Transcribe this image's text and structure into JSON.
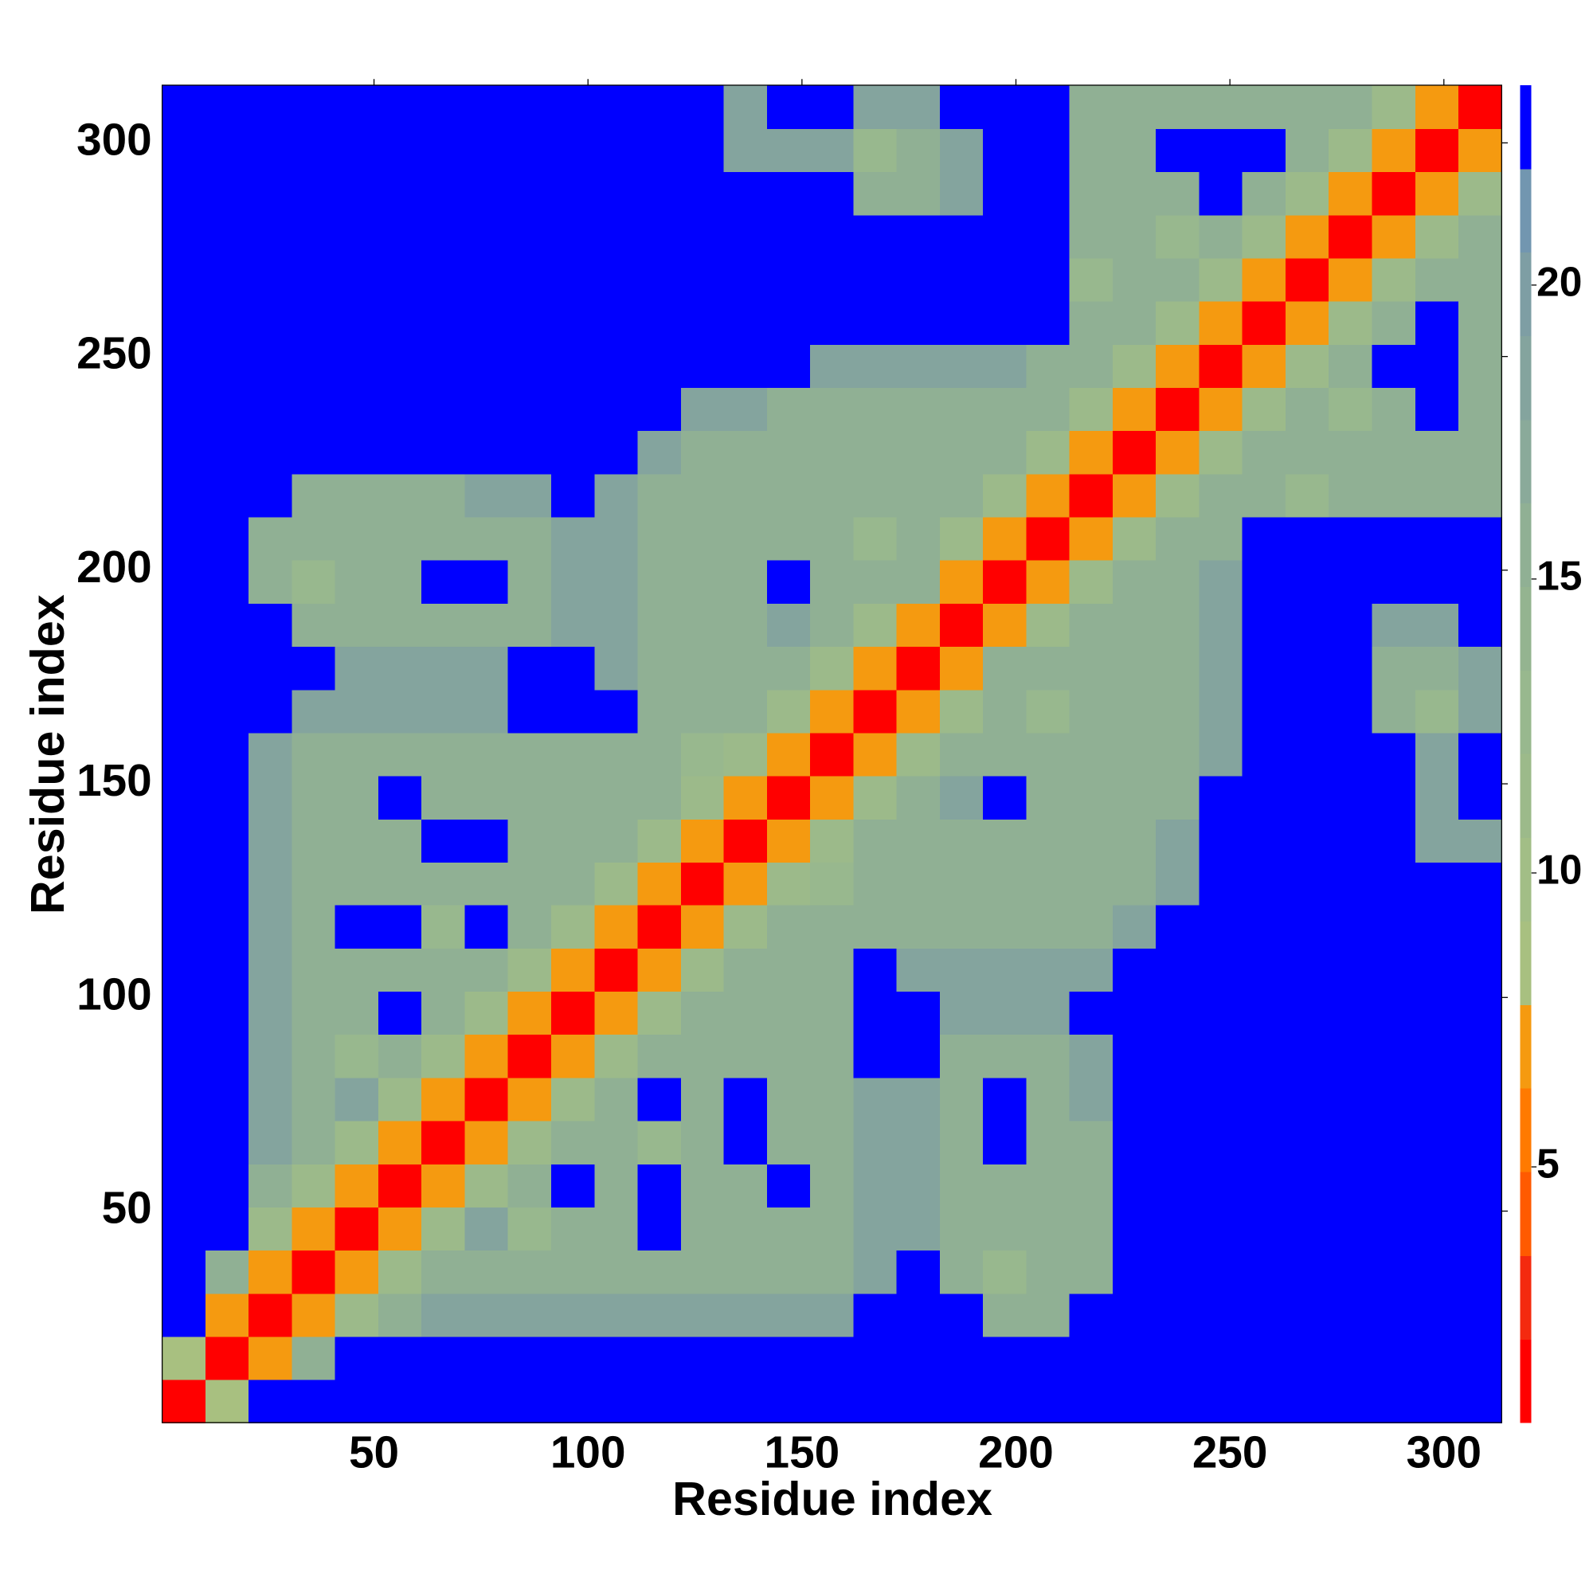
{
  "chart_data": {
    "type": "heatmap",
    "xlabel": "Residue index",
    "ylabel": "Residue index",
    "xlim": [
      0.5,
      313.5
    ],
    "ylim": [
      0.5,
      313.5
    ],
    "xticks": [
      50,
      100,
      150,
      200,
      250,
      300
    ],
    "yticks": [
      50,
      100,
      150,
      200,
      250,
      300
    ],
    "xbins": [
      0.5,
      10.6,
      20.7,
      30.8,
      40.9,
      51.0,
      61.1,
      71.2,
      81.3,
      91.4,
      101.5,
      111.6,
      121.7,
      131.7,
      141.8,
      151.9,
      162.0,
      172.1,
      182.2,
      192.3,
      202.4,
      212.5,
      222.6,
      232.7,
      242.8,
      252.9,
      263.0,
      273.1,
      283.2,
      293.3,
      303.4,
      313.5
    ],
    "ybins": [
      0.5,
      10.6,
      20.7,
      30.8,
      40.9,
      51.0,
      61.1,
      71.2,
      81.3,
      91.4,
      101.5,
      111.6,
      121.7,
      131.7,
      141.8,
      151.9,
      162.0,
      172.1,
      182.2,
      192.3,
      202.4,
      212.5,
      222.6,
      232.7,
      242.8,
      252.9,
      263.0,
      273.1,
      283.2,
      293.3,
      303.4,
      313.5
    ],
    "z": [
      [
        2,
        9,
        23,
        23,
        23,
        23,
        23,
        23,
        23,
        23,
        23,
        23,
        23,
        23,
        23,
        23,
        23,
        23,
        23,
        23,
        23,
        23,
        23,
        23,
        23,
        23,
        23,
        23,
        23,
        23,
        23
      ],
      [
        9,
        2,
        7,
        16,
        23,
        23,
        23,
        23,
        23,
        23,
        23,
        23,
        23,
        23,
        23,
        23,
        23,
        23,
        23,
        23,
        23,
        23,
        23,
        23,
        23,
        23,
        23,
        23,
        23,
        23,
        23
      ],
      [
        23,
        7,
        2,
        7,
        12,
        16,
        18,
        18,
        18,
        18,
        18,
        18,
        18,
        18,
        18,
        18,
        23,
        23,
        23,
        16,
        16,
        23,
        23,
        23,
        23,
        23,
        23,
        23,
        23,
        23,
        23
      ],
      [
        23,
        16,
        7,
        2,
        7,
        12,
        16,
        16,
        16,
        16,
        16,
        16,
        16,
        16,
        16,
        16,
        18,
        23,
        16,
        13,
        16,
        16,
        23,
        23,
        23,
        23,
        23,
        23,
        23,
        23,
        23
      ],
      [
        23,
        23,
        12,
        7,
        2,
        7,
        12,
        18,
        13,
        16,
        16,
        23,
        16,
        16,
        16,
        16,
        18,
        18,
        16,
        16,
        16,
        16,
        23,
        23,
        23,
        23,
        23,
        23,
        23,
        23,
        23
      ],
      [
        23,
        23,
        16,
        12,
        7,
        2,
        7,
        12,
        16,
        23,
        16,
        23,
        16,
        16,
        23,
        16,
        18,
        18,
        16,
        16,
        16,
        16,
        23,
        23,
        23,
        23,
        23,
        23,
        23,
        23,
        23
      ],
      [
        23,
        23,
        18,
        16,
        12,
        7,
        2,
        7,
        12,
        16,
        16,
        13,
        16,
        23,
        16,
        16,
        18,
        18,
        16,
        23,
        16,
        16,
        23,
        23,
        23,
        23,
        23,
        23,
        23,
        23,
        23
      ],
      [
        23,
        23,
        18,
        16,
        18,
        12,
        7,
        2,
        7,
        12,
        16,
        23,
        16,
        23,
        16,
        16,
        18,
        18,
        16,
        23,
        16,
        18,
        23,
        23,
        23,
        23,
        23,
        23,
        23,
        23,
        23
      ],
      [
        23,
        23,
        18,
        16,
        13,
        16,
        12,
        7,
        2,
        7,
        12,
        16,
        16,
        16,
        16,
        16,
        23,
        23,
        16,
        16,
        16,
        18,
        23,
        23,
        23,
        23,
        23,
        23,
        23,
        23,
        23
      ],
      [
        23,
        23,
        18,
        16,
        16,
        23,
        16,
        12,
        7,
        2,
        7,
        12,
        16,
        16,
        16,
        16,
        23,
        23,
        18,
        18,
        18,
        23,
        23,
        23,
        23,
        23,
        23,
        23,
        23,
        23,
        23
      ],
      [
        23,
        23,
        18,
        16,
        16,
        16,
        16,
        16,
        12,
        7,
        2,
        7,
        12,
        16,
        16,
        16,
        23,
        18,
        18,
        18,
        18,
        18,
        23,
        23,
        23,
        23,
        23,
        23,
        23,
        23,
        23
      ],
      [
        23,
        23,
        18,
        16,
        23,
        23,
        13,
        23,
        16,
        12,
        7,
        2,
        7,
        12,
        16,
        16,
        16,
        16,
        16,
        16,
        16,
        16,
        18,
        23,
        23,
        23,
        23,
        23,
        23,
        23,
        23
      ],
      [
        23,
        23,
        18,
        16,
        16,
        16,
        16,
        16,
        16,
        16,
        12,
        7,
        2,
        7,
        12,
        13,
        16,
        16,
        16,
        16,
        16,
        16,
        16,
        18,
        23,
        23,
        23,
        23,
        23,
        23,
        23
      ],
      [
        23,
        23,
        18,
        16,
        16,
        16,
        23,
        23,
        16,
        16,
        16,
        12,
        7,
        2,
        7,
        12,
        16,
        16,
        16,
        16,
        16,
        16,
        16,
        18,
        23,
        23,
        23,
        23,
        23,
        18,
        18
      ],
      [
        23,
        23,
        18,
        16,
        16,
        23,
        16,
        16,
        16,
        16,
        16,
        16,
        12,
        7,
        2,
        7,
        12,
        16,
        18,
        23,
        16,
        16,
        16,
        16,
        23,
        23,
        23,
        23,
        23,
        18,
        23
      ],
      [
        23,
        23,
        18,
        16,
        16,
        16,
        16,
        16,
        16,
        16,
        16,
        16,
        13,
        12,
        7,
        2,
        7,
        12,
        16,
        16,
        16,
        16,
        16,
        16,
        18,
        23,
        23,
        23,
        23,
        18,
        23
      ],
      [
        23,
        23,
        23,
        18,
        18,
        18,
        18,
        18,
        23,
        23,
        23,
        16,
        16,
        16,
        12,
        7,
        2,
        7,
        12,
        16,
        13,
        16,
        16,
        16,
        18,
        23,
        23,
        23,
        16,
        13,
        18
      ],
      [
        23,
        23,
        23,
        23,
        18,
        18,
        18,
        18,
        23,
        23,
        18,
        16,
        16,
        16,
        16,
        12,
        7,
        2,
        7,
        16,
        16,
        16,
        16,
        16,
        18,
        23,
        23,
        23,
        16,
        16,
        18
      ],
      [
        23,
        23,
        23,
        16,
        16,
        16,
        16,
        16,
        16,
        18,
        18,
        16,
        16,
        16,
        18,
        16,
        12,
        7,
        2,
        7,
        12,
        16,
        16,
        16,
        18,
        23,
        23,
        23,
        18,
        18,
        23
      ],
      [
        23,
        23,
        16,
        13,
        16,
        16,
        23,
        23,
        16,
        18,
        18,
        16,
        16,
        16,
        23,
        16,
        16,
        16,
        7,
        2,
        7,
        12,
        16,
        16,
        18,
        23,
        23,
        23,
        23,
        23,
        23
      ],
      [
        23,
        23,
        16,
        16,
        16,
        16,
        16,
        16,
        16,
        18,
        18,
        16,
        16,
        16,
        16,
        16,
        13,
        16,
        12,
        7,
        2,
        7,
        12,
        16,
        16,
        23,
        23,
        23,
        23,
        23,
        23
      ],
      [
        23,
        23,
        23,
        16,
        16,
        16,
        16,
        18,
        18,
        23,
        18,
        16,
        16,
        16,
        16,
        16,
        16,
        16,
        16,
        12,
        7,
        2,
        7,
        12,
        16,
        16,
        13,
        16,
        16,
        16,
        16
      ],
      [
        23,
        23,
        23,
        23,
        23,
        23,
        23,
        23,
        23,
        23,
        23,
        18,
        16,
        16,
        16,
        16,
        16,
        16,
        16,
        16,
        12,
        7,
        2,
        7,
        12,
        16,
        16,
        16,
        16,
        16,
        16
      ],
      [
        23,
        23,
        23,
        23,
        23,
        23,
        23,
        23,
        23,
        23,
        23,
        23,
        18,
        18,
        16,
        16,
        16,
        16,
        16,
        16,
        16,
        12,
        7,
        2,
        7,
        12,
        16,
        13,
        16,
        23,
        16
      ],
      [
        23,
        23,
        23,
        23,
        23,
        23,
        23,
        23,
        23,
        23,
        23,
        23,
        23,
        23,
        23,
        18,
        18,
        18,
        18,
        18,
        16,
        16,
        12,
        7,
        2,
        7,
        12,
        16,
        23,
        23,
        16
      ],
      [
        23,
        23,
        23,
        23,
        23,
        23,
        23,
        23,
        23,
        23,
        23,
        23,
        23,
        23,
        23,
        23,
        23,
        23,
        23,
        23,
        23,
        16,
        16,
        12,
        7,
        2,
        7,
        12,
        16,
        23,
        16
      ],
      [
        23,
        23,
        23,
        23,
        23,
        23,
        23,
        23,
        23,
        23,
        23,
        23,
        23,
        23,
        23,
        23,
        23,
        23,
        23,
        23,
        23,
        13,
        16,
        16,
        12,
        7,
        2,
        7,
        12,
        16,
        16
      ],
      [
        23,
        23,
        23,
        23,
        23,
        23,
        23,
        23,
        23,
        23,
        23,
        23,
        23,
        23,
        23,
        23,
        23,
        23,
        23,
        23,
        23,
        16,
        16,
        13,
        16,
        12,
        7,
        2,
        7,
        12,
        16
      ],
      [
        23,
        23,
        23,
        23,
        23,
        23,
        23,
        23,
        23,
        23,
        23,
        23,
        23,
        23,
        23,
        23,
        16,
        16,
        18,
        23,
        23,
        16,
        16,
        16,
        23,
        16,
        12,
        7,
        2,
        7,
        12
      ],
      [
        23,
        23,
        23,
        23,
        23,
        23,
        23,
        23,
        23,
        23,
        23,
        23,
        23,
        18,
        18,
        18,
        13,
        16,
        18,
        23,
        23,
        16,
        16,
        23,
        23,
        23,
        16,
        12,
        7,
        2,
        7
      ],
      [
        23,
        23,
        23,
        23,
        23,
        23,
        23,
        23,
        23,
        23,
        23,
        23,
        23,
        18,
        23,
        23,
        18,
        18,
        23,
        23,
        23,
        16,
        16,
        16,
        16,
        16,
        16,
        16,
        12,
        7,
        2
      ]
    ],
    "colorbar": {
      "levels": [
        0.65,
        2.07,
        3.49,
        4.92,
        6.34,
        7.76,
        9.18,
        10.6,
        12.03,
        13.45,
        14.87,
        16.29,
        17.71,
        19.14,
        20.56,
        21.98,
        23.4
      ],
      "colors": [
        "#ff0000",
        "#f42a0f",
        "#ff5a00",
        "#ff7a00",
        "#f59a10",
        "#a8c080",
        "#a2be86",
        "#9cba8a",
        "#98b88e",
        "#94b490",
        "#90b094",
        "#8aaa9a",
        "#84a49e",
        "#7e9ea4",
        "#7296b0",
        "#0000ff"
      ],
      "ticks": [
        5,
        10,
        15,
        20
      ]
    }
  }
}
